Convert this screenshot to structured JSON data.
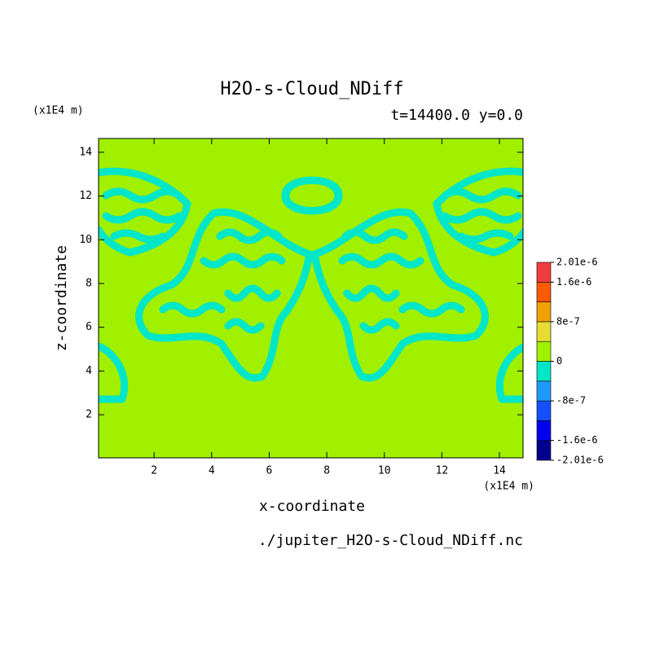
{
  "chart_data": {
    "type": "contour",
    "title": "H2O-s-Cloud_NDiff",
    "subtitle": "t=14400.0 y=0.0",
    "x_label": "x-coordinate",
    "y_label": "z-coordinate",
    "x_unit": "(x1E4 m)",
    "y_unit": "(x1E4 m)",
    "footer": "./jupiter_H2O-s-Cloud_NDiff.nc",
    "xlim": [
      0.07,
      14.82
    ],
    "ylim": [
      0.03,
      14.63
    ],
    "xticks": [
      2,
      4,
      6,
      8,
      10,
      12,
      14
    ],
    "yticks": [
      2,
      4,
      6,
      8,
      10,
      12,
      14
    ],
    "levels": [
      -2.01e-06,
      -1.6e-06,
      -1.2e-06,
      -8e-07,
      -4e-07,
      0,
      4e-07,
      8e-07,
      1.2e-06,
      1.6e-06,
      2.01e-06
    ],
    "colors": [
      "#00008c",
      "#0000f0",
      "#1450ff",
      "#1e9bff",
      "#00e6c8",
      "#a0f000",
      "#e6dc32",
      "#f0a000",
      "#fa5a00",
      "#f03c3c"
    ],
    "colorbar_ticks": [
      {
        "value": 2.01e-06,
        "label": "2.01e-6"
      },
      {
        "value": 1.6e-06,
        "label": "1.6e-6"
      },
      {
        "value": 8e-07,
        "label": "8e-7"
      },
      {
        "value": 0,
        "label": "0"
      },
      {
        "value": -8e-07,
        "label": "-8e-7"
      },
      {
        "value": -1.6e-06,
        "label": "-1.6e-6"
      },
      {
        "value": -2.01e-06,
        "label": "-2.01e-6"
      }
    ]
  }
}
